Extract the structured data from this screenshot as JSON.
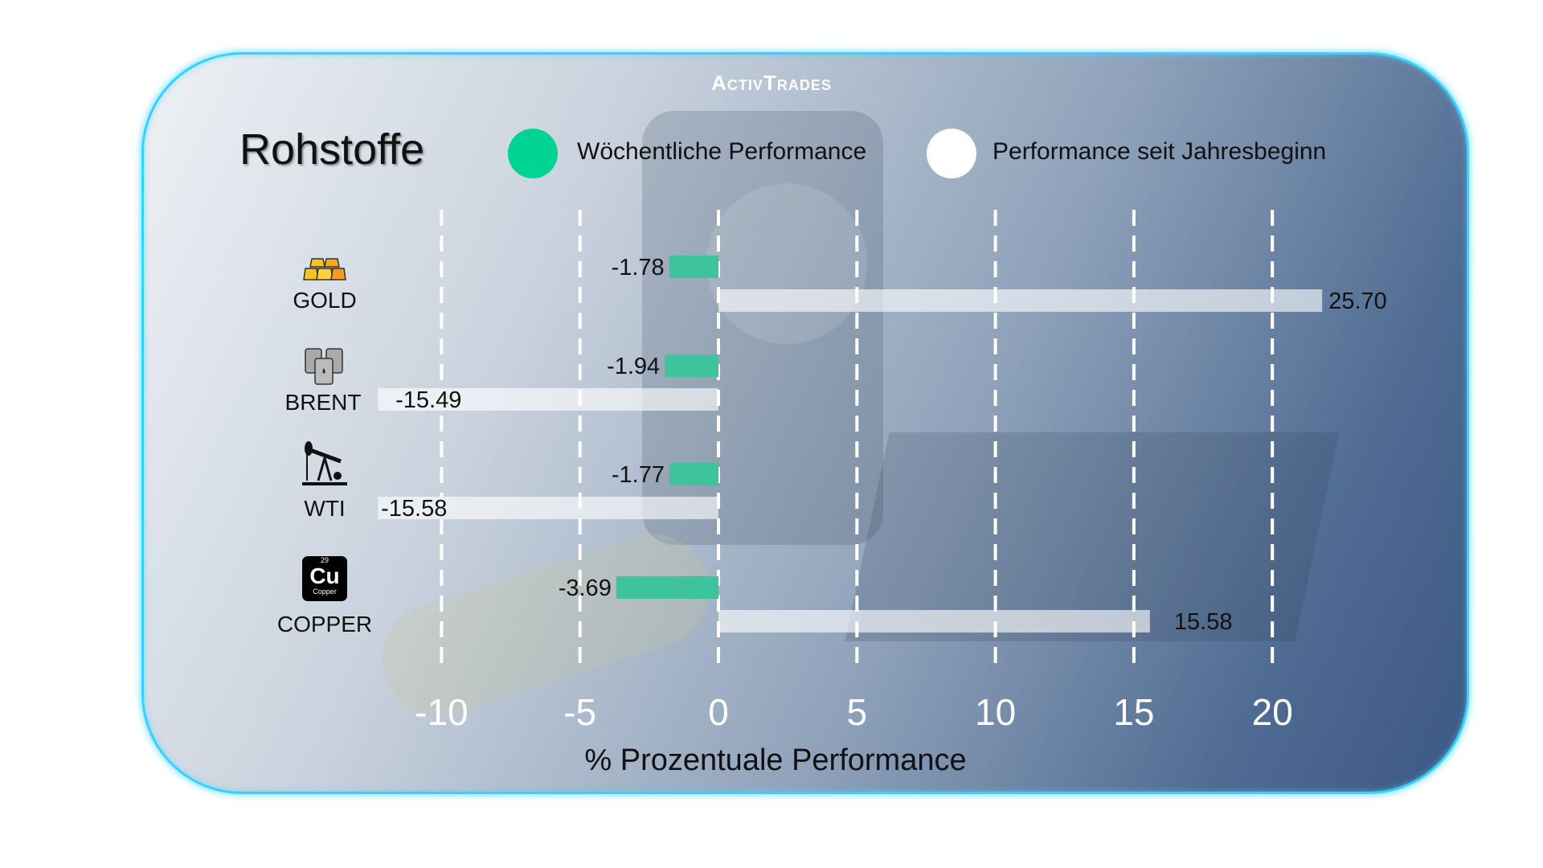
{
  "brand": "ActivTrades",
  "title": "Rohstoffe",
  "legend": [
    {
      "label": "Wöchentliche Performance",
      "color": "#3fc39c"
    },
    {
      "label": "Performance seit Jahresbeginn",
      "color": "#ffffff"
    }
  ],
  "chart_data": {
    "type": "bar",
    "orientation": "horizontal",
    "title": "Rohstoffe",
    "xlabel": "% Prozentuale Performance",
    "categories": [
      "GOLD",
      "BRENT",
      "WTI",
      "COPPER"
    ],
    "series": [
      {
        "name": "Wöchentliche Performance",
        "values": [
          -1.78,
          -1.94,
          -1.77,
          -3.69
        ],
        "labels": [
          "-1.78",
          "-1.94",
          "-1.77",
          "-3.69"
        ],
        "color": "#3fc39c"
      },
      {
        "name": "Performance seit Jahresbeginn",
        "values": [
          25.7,
          -15.49,
          -15.58,
          15.58
        ],
        "labels": [
          "25.70",
          "-15.49",
          "-15.58",
          "15.58"
        ],
        "color": "#ffffff"
      }
    ],
    "xticks": [
      "-10",
      "-5",
      "0",
      "5",
      "10",
      "15",
      "20"
    ],
    "xtick_values": [
      -10,
      -5,
      0,
      5,
      10,
      15,
      20
    ],
    "grid": "vertical dashed",
    "legend_position": "top"
  },
  "icons": [
    "gold-bars-icon",
    "oil-barrels-icon",
    "oil-pump-icon",
    "copper-element-icon"
  ],
  "copper_icon": {
    "number": "29",
    "symbol": "Cu",
    "name": "Copper"
  }
}
